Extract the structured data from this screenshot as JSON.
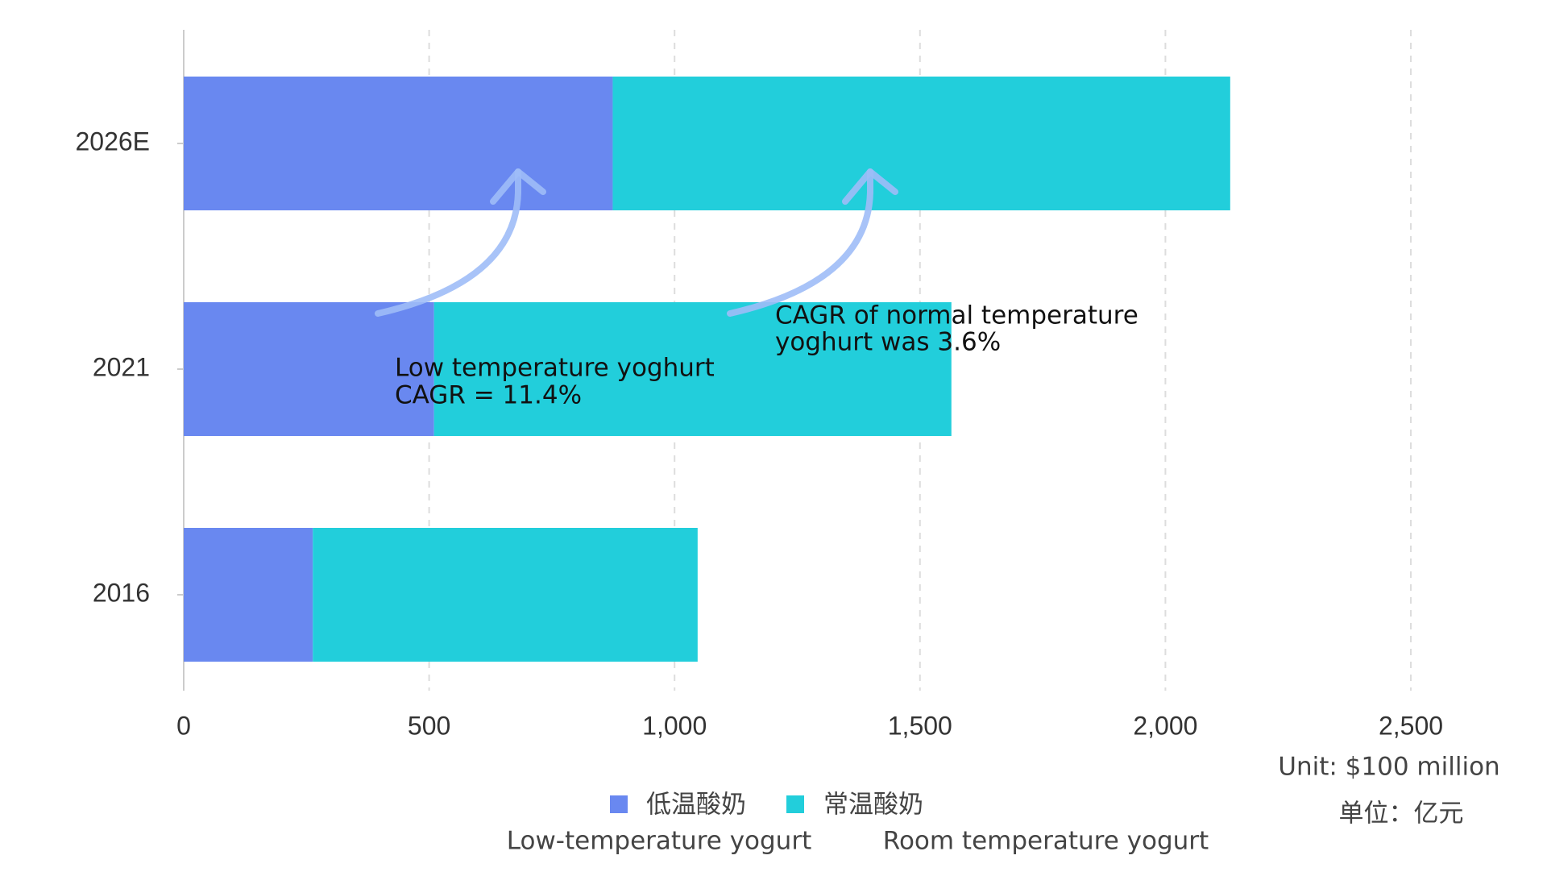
{
  "chart_data": {
    "type": "bar",
    "orientation": "horizontal",
    "stacked": true,
    "categories": [
      "2016",
      "2021",
      "2026E"
    ],
    "series": [
      {
        "name": "低温酸奶",
        "subtitle": "Low-temperature yogurt",
        "color": "#6988f0",
        "values": [
          263,
          510,
          874
        ]
      },
      {
        "name": "常温酸奶",
        "subtitle": "Room temperature yogurt",
        "color": "#22cedb",
        "values": [
          784,
          1054,
          1258
        ]
      }
    ],
    "xlim": [
      0,
      2500
    ],
    "xticks": [
      0,
      500,
      {
        "value": 1000,
        "label": "1,000"
      },
      {
        "value": 1500,
        "label": "1,500"
      },
      {
        "value": 2000,
        "label": "2,000"
      },
      {
        "value": 2500,
        "label": "2,500"
      }
    ],
    "grid": true,
    "annotations": [
      [
        "Low temperature yoghurt",
        "CAGR = 11.4%"
      ],
      [
        "CAGR of normal temperature",
        "yoghurt was 3.6%"
      ]
    ],
    "unit": "Unit: $100 million",
    "unit_cn": "单位：亿元"
  }
}
